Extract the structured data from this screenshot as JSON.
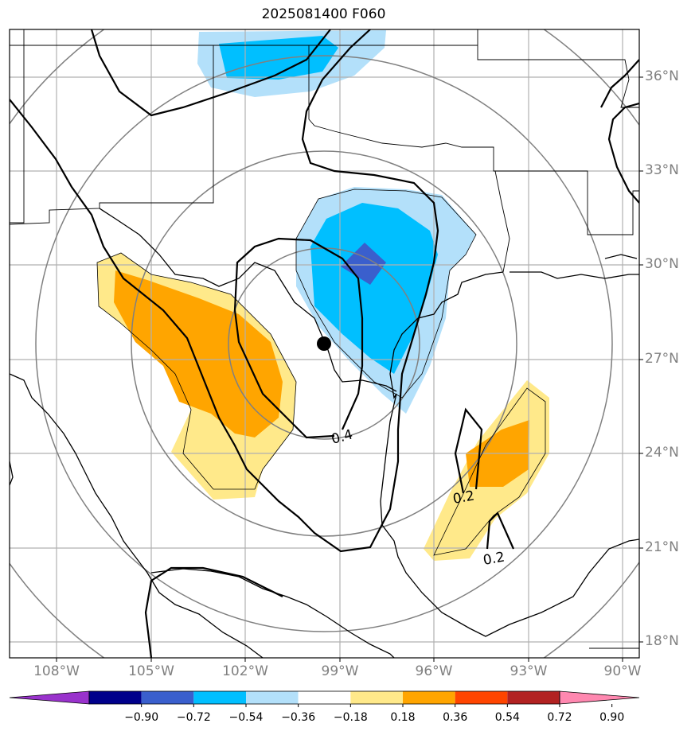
{
  "title": "2025081400 F060",
  "lat_labels": [
    "36°N",
    "33°N",
    "30°N",
    "27°N",
    "24°N",
    "21°N",
    "18°N"
  ],
  "lon_labels": [
    "108°W",
    "105°W",
    "102°W",
    "99°W",
    "96°W",
    "93°W",
    "90°W"
  ],
  "contour_labels": [
    "0.4",
    "0.2",
    "0.2"
  ],
  "colorbar": {
    "ticks": [
      "−0.90",
      "−0.72",
      "−0.54",
      "−0.36",
      "−0.18",
      "0.18",
      "0.36",
      "0.54",
      "0.72",
      "0.90"
    ],
    "colors": [
      "#9932cc",
      "#00008b",
      "#3a5fcd",
      "#00bfff",
      "#b3e0fa",
      "#ffffff",
      "#ffe98a",
      "#ffa500",
      "#ff4500",
      "#b22222",
      "#ff88b0"
    ]
  },
  "colors": {
    "grid": "#b0b0b0",
    "range_rings": "#808080",
    "coast": "#000000",
    "center_marker": "#000000"
  }
}
